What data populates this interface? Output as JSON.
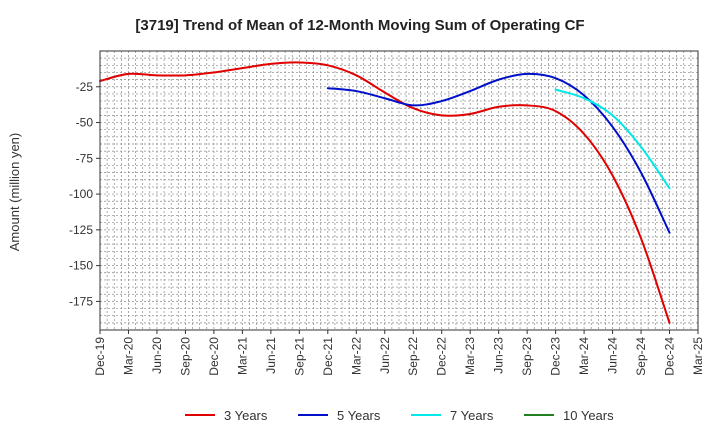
{
  "chart_data": {
    "type": "line",
    "title": "[3719]  Trend of Mean of 12-Month Moving Sum of Operating CF",
    "xlabel": "",
    "ylabel": "Amount (million yen)",
    "ylim": [
      -195,
      0
    ],
    "yticks": [
      -25,
      -50,
      -75,
      -100,
      -125,
      -150,
      -175
    ],
    "xticks": [
      "Dec-19",
      "Mar-20",
      "Jun-20",
      "Sep-20",
      "Dec-20",
      "Mar-21",
      "Jun-21",
      "Sep-21",
      "Dec-21",
      "Mar-22",
      "Jun-22",
      "Sep-22",
      "Dec-22",
      "Mar-23",
      "Jun-23",
      "Sep-23",
      "Dec-23",
      "Mar-24",
      "Jun-24",
      "Sep-24",
      "Dec-24",
      "Mar-25"
    ],
    "grid": true,
    "legend_position": "bottom",
    "series": [
      {
        "name": "3 Years",
        "color": "#e00000",
        "points": [
          {
            "x": "Dec-19",
            "y": -21
          },
          {
            "x": "Mar-20",
            "y": -16
          },
          {
            "x": "Jun-20",
            "y": -17
          },
          {
            "x": "Sep-20",
            "y": -17
          },
          {
            "x": "Dec-20",
            "y": -15
          },
          {
            "x": "Mar-21",
            "y": -12
          },
          {
            "x": "Jun-21",
            "y": -9
          },
          {
            "x": "Sep-21",
            "y": -8
          },
          {
            "x": "Dec-21",
            "y": -10
          },
          {
            "x": "Mar-22",
            "y": -17
          },
          {
            "x": "Jun-22",
            "y": -29
          },
          {
            "x": "Sep-22",
            "y": -40
          },
          {
            "x": "Dec-22",
            "y": -45
          },
          {
            "x": "Mar-23",
            "y": -44
          },
          {
            "x": "Jun-23",
            "y": -39
          },
          {
            "x": "Sep-23",
            "y": -38
          },
          {
            "x": "Dec-23",
            "y": -42
          },
          {
            "x": "Mar-24",
            "y": -58
          },
          {
            "x": "Jun-24",
            "y": -87
          },
          {
            "x": "Sep-24",
            "y": -131
          },
          {
            "x": "Dec-24",
            "y": -190
          }
        ]
      },
      {
        "name": "5 Years",
        "color": "#0010c8",
        "points": [
          {
            "x": "Dec-21",
            "y": -26
          },
          {
            "x": "Mar-22",
            "y": -28
          },
          {
            "x": "Jun-22",
            "y": -33
          },
          {
            "x": "Sep-22",
            "y": -38
          },
          {
            "x": "Dec-22",
            "y": -35
          },
          {
            "x": "Mar-23",
            "y": -28
          },
          {
            "x": "Jun-23",
            "y": -20
          },
          {
            "x": "Sep-23",
            "y": -16
          },
          {
            "x": "Dec-23",
            "y": -19
          },
          {
            "x": "Mar-24",
            "y": -31
          },
          {
            "x": "Jun-24",
            "y": -53
          },
          {
            "x": "Sep-24",
            "y": -85
          },
          {
            "x": "Dec-24",
            "y": -127
          }
        ]
      },
      {
        "name": "7 Years",
        "color": "#00e8e8",
        "points": [
          {
            "x": "Dec-23",
            "y": -27
          },
          {
            "x": "Mar-24",
            "y": -33
          },
          {
            "x": "Jun-24",
            "y": -45
          },
          {
            "x": "Sep-24",
            "y": -67
          },
          {
            "x": "Dec-24",
            "y": -96
          }
        ]
      },
      {
        "name": "10 Years",
        "color": "#208020",
        "points": []
      }
    ]
  }
}
